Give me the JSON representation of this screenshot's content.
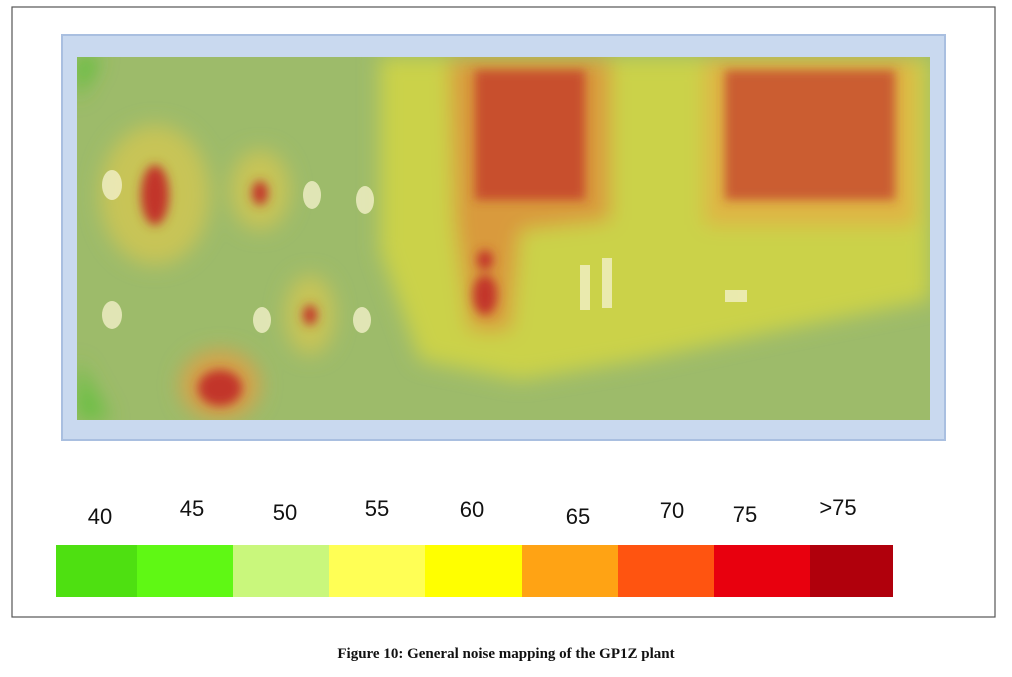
{
  "legend": {
    "items": [
      {
        "label": "40",
        "color": "#4ee011"
      },
      {
        "label": "45",
        "color": "#5ff814"
      },
      {
        "label": "50",
        "color": "#c9f77c"
      },
      {
        "label": "55",
        "color": "#ffff55"
      },
      {
        "label": "60",
        "color": "#ffff00"
      },
      {
        "label": "65",
        "color": "#ffa314"
      },
      {
        "label": "70",
        "color": "#ff5410"
      },
      {
        "label": "75",
        "color": "#e8000e"
      },
      {
        "label": ">75",
        "color": "#b0000c"
      }
    ]
  },
  "caption": "Figure 10: General noise mapping of the GP1Z plant"
}
